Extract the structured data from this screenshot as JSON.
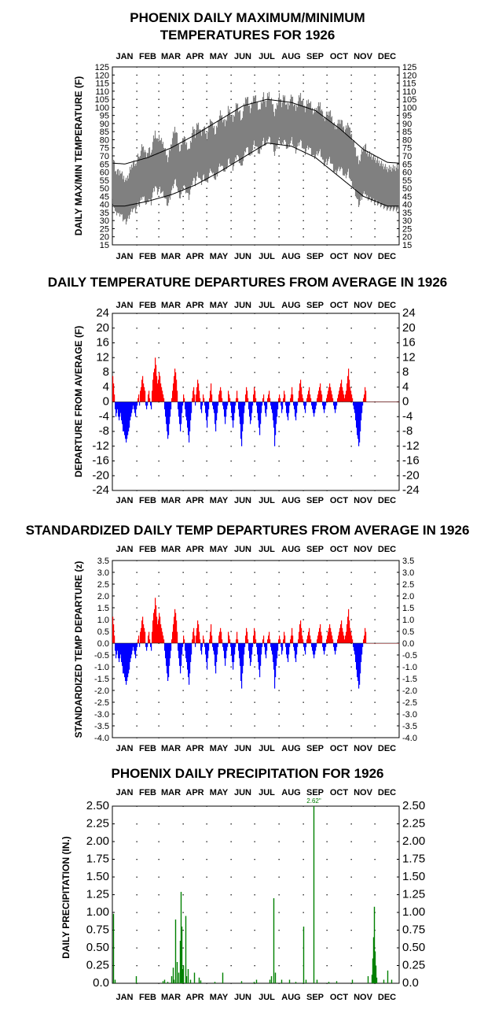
{
  "chart_data": [
    {
      "type": "area",
      "title": "PHOENIX DAILY MAXIMUM/MINIMUM",
      "subtitle": "TEMPERATURES FOR 1926",
      "ylabel": "DAILY MAX/MIN TEMPERATURE (F)",
      "months": [
        "JAN",
        "FEB",
        "MAR",
        "APR",
        "MAY",
        "JUN",
        "JUL",
        "AUG",
        "SEP",
        "OCT",
        "NOV",
        "DEC"
      ],
      "ylim": [
        15,
        125
      ],
      "yticks": [
        15,
        20,
        25,
        30,
        35,
        40,
        45,
        50,
        55,
        60,
        65,
        70,
        75,
        80,
        85,
        90,
        95,
        100,
        105,
        110,
        115,
        120,
        125
      ],
      "grid": true,
      "series": [
        {
          "kind": "daily_range_band",
          "color": "#808080",
          "daily_max_by_month": [
            64,
            72,
            78,
            84,
            92,
            103,
            106,
            104,
            100,
            88,
            74,
            62
          ],
          "daily_min_by_month": [
            37,
            42,
            48,
            54,
            62,
            72,
            80,
            78,
            72,
            60,
            46,
            38
          ]
        },
        {
          "kind": "normal_line",
          "color": "#000000",
          "normal_max_by_month": [
            65,
            69,
            75,
            83,
            92,
            101,
            105,
            103,
            98,
            87,
            74,
            66
          ],
          "normal_min_by_month": [
            39,
            42,
            46,
            52,
            60,
            69,
            78,
            76,
            69,
            57,
            45,
            39
          ]
        }
      ]
    },
    {
      "type": "bar",
      "title": "DAILY TEMPERATURE DEPARTURES FROM AVERAGE IN 1926",
      "ylabel": "DEPARTURE FROM AVERAGE (F)",
      "months": [
        "JAN",
        "FEB",
        "MAR",
        "APR",
        "MAY",
        "JUN",
        "JUL",
        "AUG",
        "SEP",
        "OCT",
        "NOV",
        "DEC"
      ],
      "ylim": [
        -24,
        24
      ],
      "yticks": [
        24,
        20,
        16,
        12,
        8,
        4,
        0,
        -4,
        -8,
        -12,
        -16,
        -20,
        -24
      ],
      "grid": true,
      "positive_color": "#ff0000",
      "negative_color": "#0000ff",
      "series": [
        {
          "name": "",
          "daily_departure_by_day": [
            7,
            5,
            2,
            -2,
            -4,
            -3,
            -2,
            -4,
            -5,
            -4,
            -3,
            -5,
            -6,
            -8,
            -8,
            -9,
            -10,
            -11,
            -10,
            -9,
            -8,
            -7,
            -5,
            -4,
            -3,
            -2,
            -1,
            -2,
            -3,
            -4,
            -2,
            -1,
            1,
            2,
            -1,
            3,
            4,
            6,
            7,
            5,
            4,
            3,
            -1,
            -2,
            -1,
            2,
            3,
            1,
            -1,
            -2,
            3,
            6,
            8,
            9,
            12,
            10,
            7,
            5,
            6,
            8,
            7,
            5,
            4,
            3,
            2,
            1,
            -2,
            -4,
            -6,
            -8,
            -10,
            -9,
            -6,
            -4,
            -2,
            1,
            3,
            5,
            7,
            9,
            8,
            6,
            3,
            -2,
            -4,
            -6,
            -8,
            -6,
            -3,
            -1,
            2,
            1,
            -2,
            -4,
            -5,
            -7,
            -9,
            -11,
            -8,
            -5,
            -3,
            1,
            3,
            4,
            2,
            -1,
            2,
            4,
            6,
            5,
            3,
            1,
            -2,
            -3,
            -1,
            2,
            1,
            -1,
            -3,
            -5,
            -7,
            -4,
            -2,
            1,
            3,
            5,
            2,
            -1,
            -2,
            -3,
            -6,
            -8,
            -5,
            -3,
            -1,
            2,
            3,
            4,
            3,
            1,
            -1,
            -2,
            -4,
            -6,
            -4,
            -2,
            -1,
            3,
            2,
            1,
            -1,
            -3,
            -5,
            -7,
            -5,
            -3,
            -1,
            1,
            3,
            1,
            -2,
            -4,
            -6,
            -10,
            -12,
            -8,
            -6,
            -3,
            -1,
            2,
            4,
            3,
            1,
            -2,
            -4,
            -6,
            -5,
            -3,
            -1,
            2,
            4,
            3,
            1,
            -1,
            -3,
            -5,
            -7,
            -9,
            -6,
            -3,
            -1,
            1,
            2,
            -1,
            -3,
            -4,
            -2,
            1,
            2,
            3,
            1,
            -1,
            -2,
            -3,
            -5,
            -7,
            -12,
            -9,
            -6,
            -4,
            -2,
            1,
            2,
            1,
            -1,
            -3,
            -2,
            1,
            3,
            2,
            -1,
            -3,
            -4,
            -5,
            -3,
            -1,
            1,
            2,
            4,
            2,
            -1,
            -2,
            -4,
            -5,
            -3,
            -1,
            1,
            3,
            5,
            6,
            4,
            2,
            1,
            -1,
            -2,
            -3,
            -1,
            1,
            2,
            3,
            4,
            2,
            1,
            -1,
            -2,
            -3,
            -4,
            -3,
            -2,
            -1,
            1,
            2,
            3,
            4,
            5,
            3,
            2,
            -1,
            -2,
            -3,
            -2,
            -1,
            1,
            2,
            3,
            4,
            5,
            4,
            3,
            2,
            1,
            -1,
            -2,
            -3,
            -2,
            -1,
            1,
            2,
            3,
            4,
            5,
            6,
            4,
            3,
            2,
            1,
            2,
            3,
            5,
            7,
            9,
            6,
            4,
            3,
            2,
            1,
            -1,
            -2,
            -3,
            -5,
            -7,
            -9,
            -10,
            -12,
            -11,
            -8,
            -5,
            -3,
            -1,
            1,
            2,
            4,
            3
          ]
        }
      ]
    },
    {
      "type": "bar",
      "title": "STANDARDIZED DAILY TEMP DEPARTURES FROM AVERAGE IN 1926",
      "ylabel": "STANDARDIZED TEMP DEPARTURE (z)",
      "months": [
        "JAN",
        "FEB",
        "MAR",
        "APR",
        "MAY",
        "JUN",
        "JUL",
        "AUG",
        "SEP",
        "OCT",
        "NOV",
        "DEC"
      ],
      "ylim": [
        -4.0,
        3.5
      ],
      "yticks": [
        3.5,
        3.0,
        2.5,
        2.0,
        1.5,
        1.0,
        0.5,
        0.0,
        -0.5,
        -1.0,
        -1.5,
        -2.0,
        -2.5,
        -3.0,
        -3.5,
        -4.0
      ],
      "ytick_labels": [
        "3.5",
        "3.0",
        "2.5",
        "2.0",
        "1.5",
        "1.0",
        "0.5",
        "0.0",
        "-0.5",
        "-1.0",
        "-1.5",
        "-2.0",
        "-2.5",
        "-3.0",
        "-3.5",
        "-4.0"
      ],
      "grid": true,
      "positive_color": "#ff0000",
      "negative_color": "#0000ff",
      "series": [
        {
          "name": "",
          "scale_from_departure_series": 0.16
        }
      ]
    },
    {
      "type": "bar",
      "title": "PHOENIX DAILY PRECIPITATION FOR 1926",
      "ylabel": "DAILY PRECIPITATION (IN.)",
      "months": [
        "JAN",
        "FEB",
        "MAR",
        "APR",
        "MAY",
        "JUN",
        "JUL",
        "AUG",
        "SEP",
        "OCT",
        "NOV",
        "DEC"
      ],
      "ylim": [
        0,
        2.5
      ],
      "yticks": [
        0.0,
        0.25,
        0.5,
        0.75,
        1.0,
        1.25,
        1.5,
        1.75,
        2.0,
        2.25,
        2.5
      ],
      "ytick_labels": [
        "0.0",
        "0.25",
        "0.50",
        "0.75",
        "1.00",
        "1.25",
        "1.50",
        "1.75",
        "2.00",
        "2.25",
        "2.50"
      ],
      "grid": true,
      "color": "#008000",
      "annotation": "2.62\"",
      "series": [
        {
          "name": "",
          "events": [
            [
              1,
              0.98
            ],
            [
              3,
              0.05
            ],
            [
              30,
              0.1
            ],
            [
              64,
              0.03
            ],
            [
              66,
              0.05
            ],
            [
              70,
              0.02
            ],
            [
              75,
              0.1
            ],
            [
              77,
              0.22
            ],
            [
              78,
              0.05
            ],
            [
              80,
              0.9
            ],
            [
              82,
              0.3
            ],
            [
              84,
              0.15
            ],
            [
              86,
              0.6
            ],
            [
              87,
              1.29
            ],
            [
              88,
              0.8
            ],
            [
              89,
              0.2
            ],
            [
              90,
              0.25
            ],
            [
              93,
              0.95
            ],
            [
              94,
              0.1
            ],
            [
              96,
              0.2
            ],
            [
              99,
              0.05
            ],
            [
              104,
              0.15
            ],
            [
              110,
              0.08
            ],
            [
              112,
              0.04
            ],
            [
              130,
              0.02
            ],
            [
              140,
              0.15
            ],
            [
              164,
              0.03
            ],
            [
              180,
              0.02
            ],
            [
              183,
              0.05
            ],
            [
              200,
              0.05
            ],
            [
              202,
              0.1
            ],
            [
              205,
              1.2
            ],
            [
              207,
              0.15
            ],
            [
              215,
              0.05
            ],
            [
              225,
              0.05
            ],
            [
              233,
              0.02
            ],
            [
              243,
              0.8
            ],
            [
              246,
              0.05
            ],
            [
              256,
              2.62
            ],
            [
              260,
              0.05
            ],
            [
              275,
              0.02
            ],
            [
              285,
              0.03
            ],
            [
              305,
              0.05
            ],
            [
              325,
              0.1
            ],
            [
              330,
              0.12
            ],
            [
              331,
              0.35
            ],
            [
              332,
              0.65
            ],
            [
              333,
              1.08
            ],
            [
              334,
              0.45
            ],
            [
              335,
              0.25
            ],
            [
              336,
              0.08
            ],
            [
              345,
              0.05
            ],
            [
              350,
              0.18
            ],
            [
              355,
              0.05
            ]
          ]
        }
      ]
    }
  ]
}
